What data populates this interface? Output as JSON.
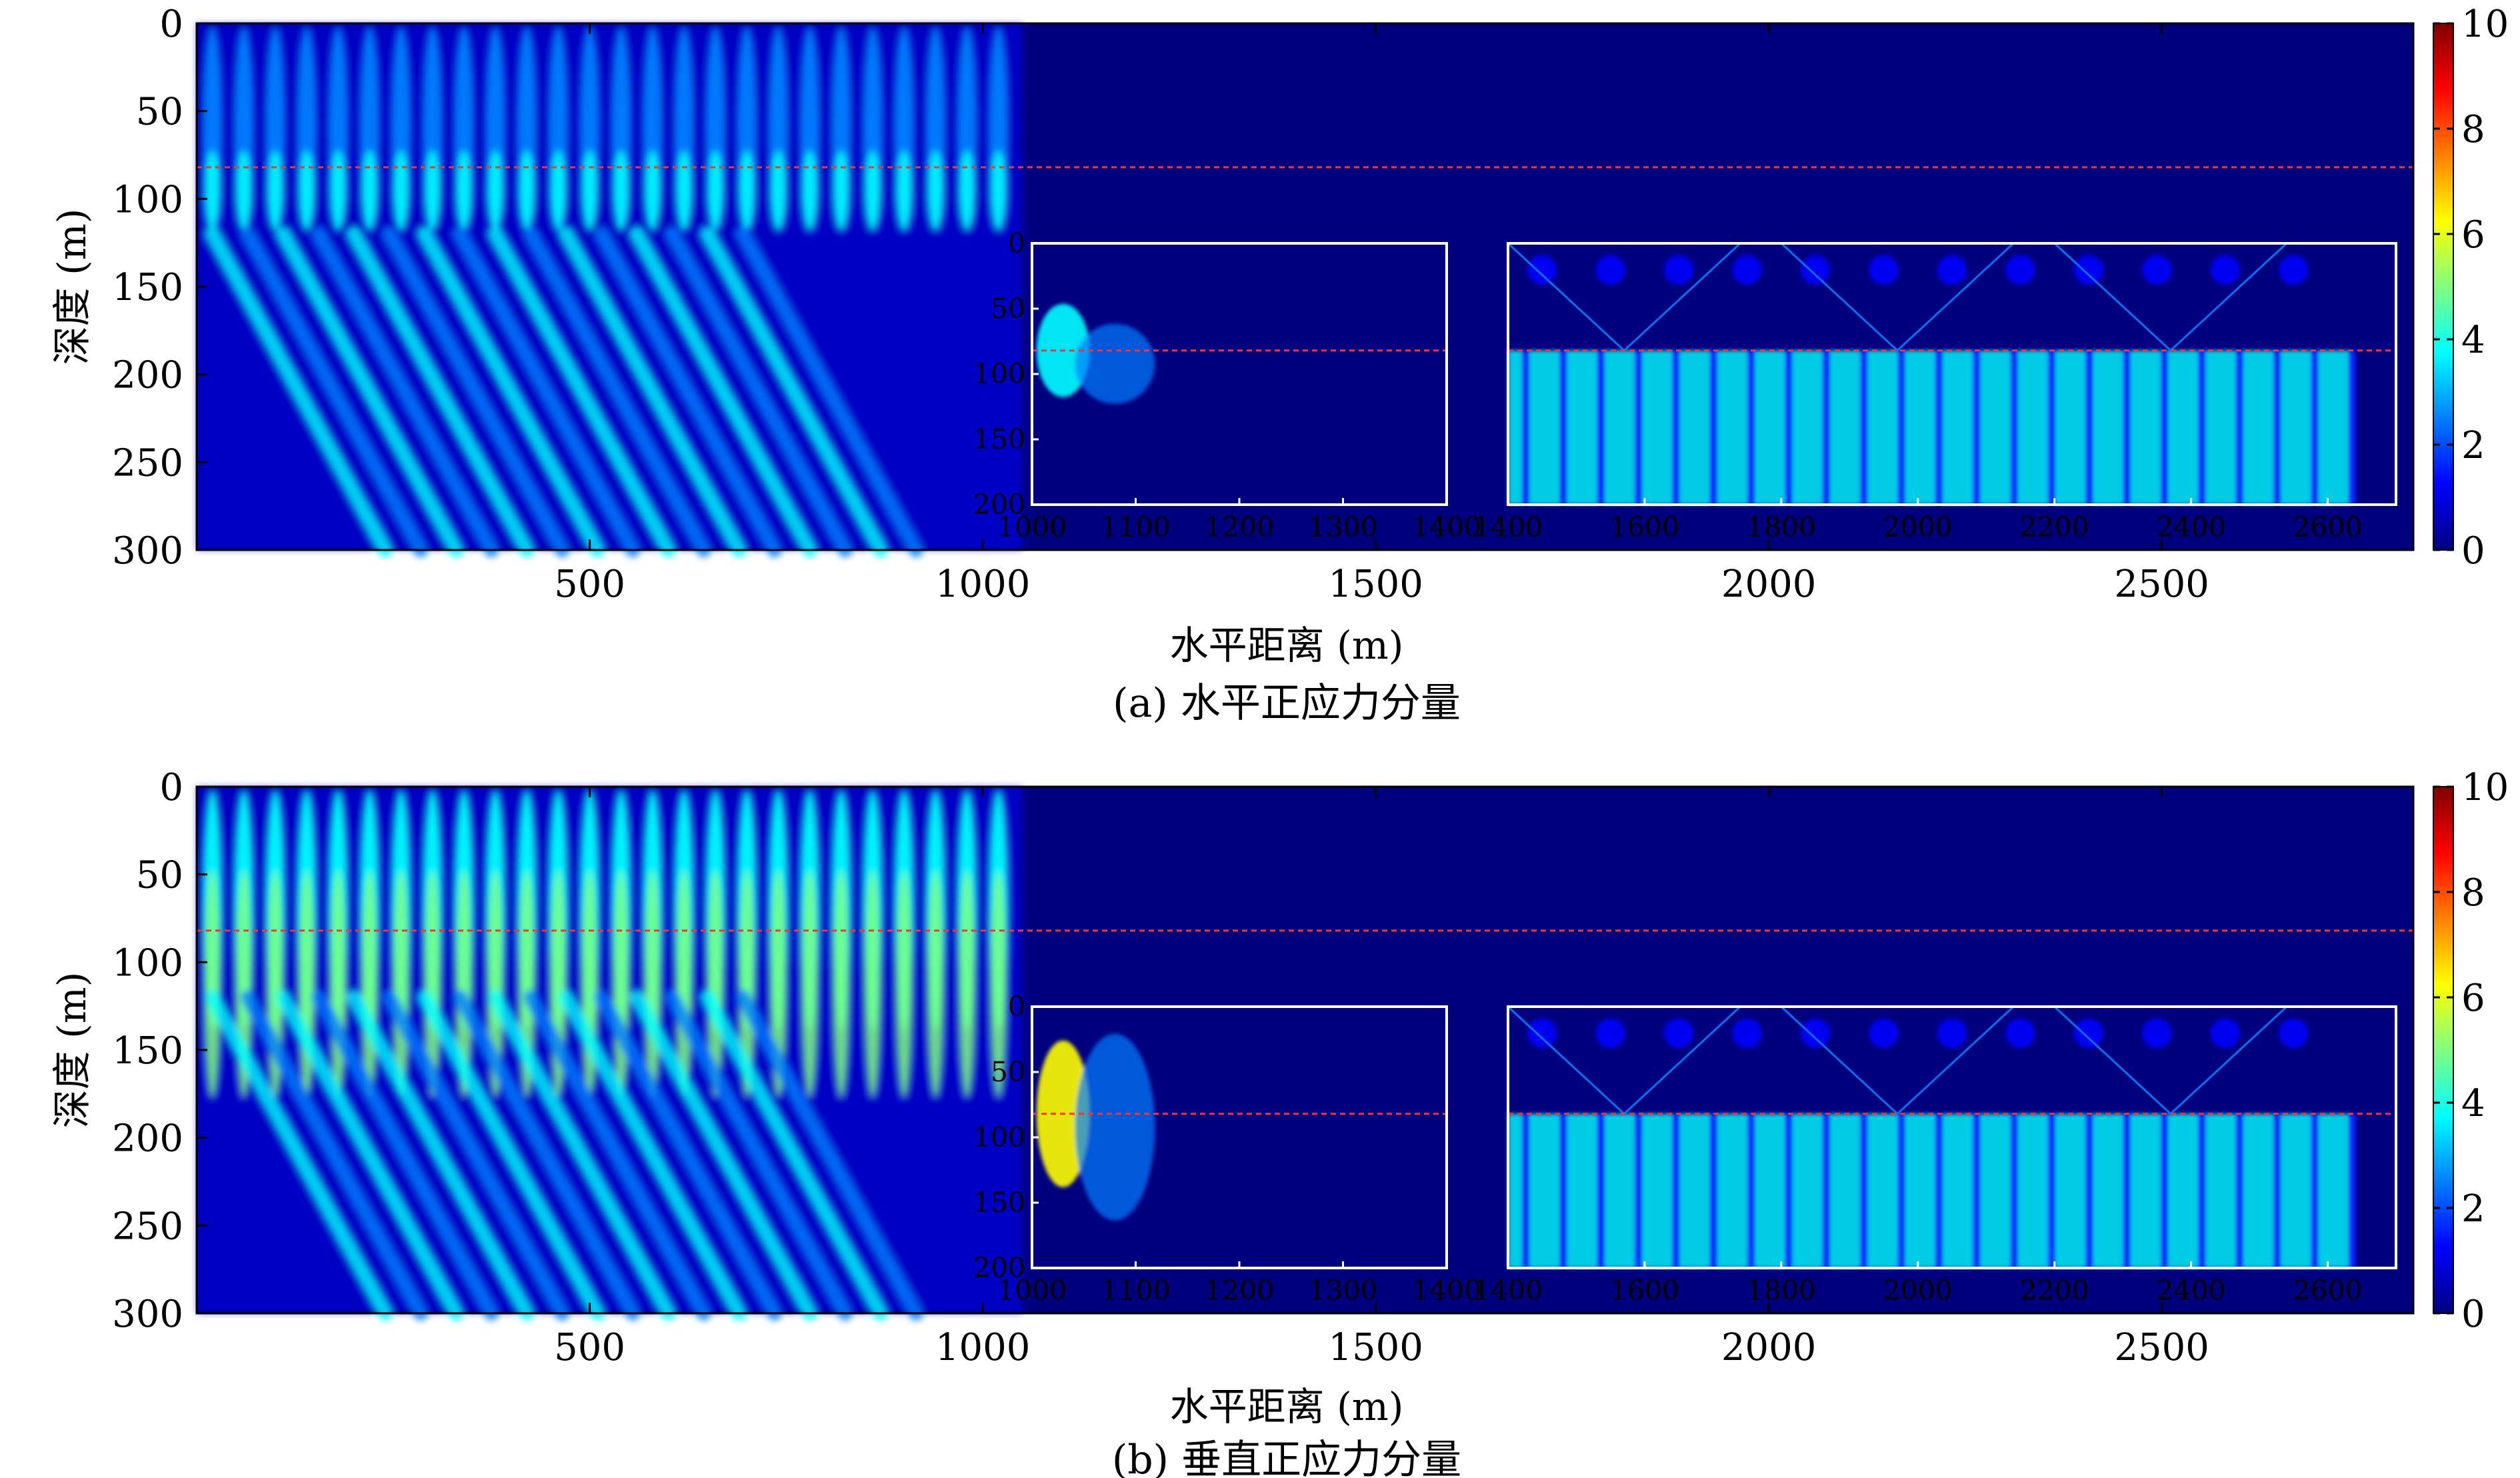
{
  "colorscale": [
    "#00007f",
    "#0000ff",
    "#007fff",
    "#00ffff",
    "#7fff7f",
    "#ffff00",
    "#ff7f00",
    "#ff0000",
    "#7f0000"
  ],
  "interface_color": "#ff3030",
  "chart_data": [
    {
      "type": "heatmap",
      "panel": "a",
      "caption": "(a) 水平正应力分量",
      "xlabel": "水平距离 (m)",
      "ylabel": "深度 (m)",
      "xlim": [
        0,
        2820
      ],
      "ylim": [
        300,
        0
      ],
      "xticks": [
        500,
        1000,
        1500,
        2000,
        2500
      ],
      "yticks": [
        0,
        50,
        100,
        150,
        200,
        250,
        300
      ],
      "colorbar": {
        "min": 0,
        "max": 10,
        "ticks": [
          0,
          2,
          4,
          6,
          8,
          10
        ]
      },
      "interface_depth": 82,
      "insets": [
        {
          "xlim": [
            1000,
            1400
          ],
          "ylim": [
            200,
            0
          ],
          "xticks": [
            1000,
            1100,
            1200,
            1300,
            1400
          ],
          "yticks": [
            0,
            50,
            100,
            150,
            200
          ]
        },
        {
          "xlim": [
            1400,
            2700
          ],
          "ylim": [
            200,
            0
          ],
          "xticks": [
            1400,
            1600,
            1800,
            2000,
            2200,
            2400,
            2600
          ],
          "yticks": []
        }
      ]
    },
    {
      "type": "heatmap",
      "panel": "b",
      "caption": "(b) 垂直正应力分量",
      "xlabel": "水平距离 (m)",
      "ylabel": "深度 (m)",
      "xlim": [
        0,
        2820
      ],
      "ylim": [
        300,
        0
      ],
      "xticks": [
        500,
        1000,
        1500,
        2000,
        2500
      ],
      "yticks": [
        0,
        50,
        100,
        150,
        200,
        250,
        300
      ],
      "colorbar": {
        "min": 0,
        "max": 10,
        "ticks": [
          0,
          2,
          4,
          6,
          8,
          10
        ]
      },
      "interface_depth": 82,
      "insets": [
        {
          "xlim": [
            1000,
            1400
          ],
          "ylim": [
            200,
            0
          ],
          "xticks": [
            1000,
            1100,
            1200,
            1300,
            1400
          ],
          "yticks": [
            0,
            50,
            100,
            150,
            200
          ]
        },
        {
          "xlim": [
            1400,
            2700
          ],
          "ylim": [
            200,
            0
          ],
          "xticks": [
            1400,
            1600,
            1800,
            2000,
            2200,
            2400,
            2600
          ],
          "yticks": []
        }
      ]
    }
  ]
}
